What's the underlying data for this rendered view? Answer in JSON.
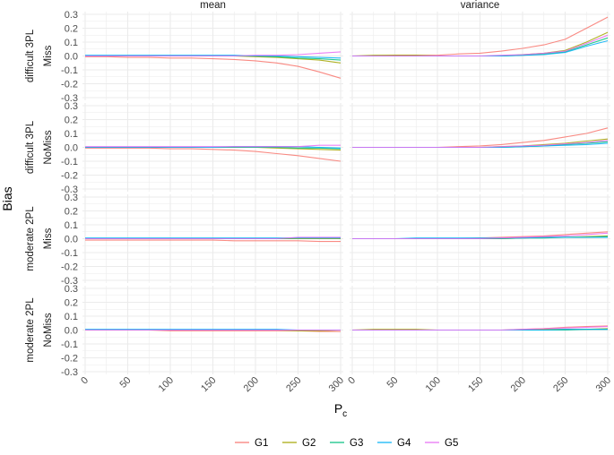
{
  "chart_data": {
    "type": "line",
    "ylabel": "Bias",
    "xlabel_main": "P",
    "xlabel_sub": "c",
    "xlim": [
      0,
      300
    ],
    "ylim": [
      -0.3,
      0.3
    ],
    "x_ticks": [
      "0",
      "50",
      "100",
      "150",
      "200",
      "250",
      "300"
    ],
    "y_ticks": [
      "-0.3",
      "-0.2",
      "-0.1",
      "0.0",
      "0.1",
      "0.2",
      "0.3"
    ],
    "grid": true,
    "legend_position": "bottom",
    "columns": [
      "mean",
      "variance"
    ],
    "rows": [
      {
        "line1": "difficult 3PL",
        "line2": "Miss"
      },
      {
        "line1": "difficult 3PL",
        "line2": "NoMiss"
      },
      {
        "line1": "moderate 2PL",
        "line2": "Miss"
      },
      {
        "line1": "moderate 2PL",
        "line2": "NoMiss"
      }
    ],
    "legend": [
      {
        "name": "G1",
        "color": "#F8766D"
      },
      {
        "name": "G2",
        "color": "#A3A500"
      },
      {
        "name": "G3",
        "color": "#00BF7D"
      },
      {
        "name": "G4",
        "color": "#00B0F6"
      },
      {
        "name": "G5",
        "color": "#E76BF3"
      }
    ],
    "x": [
      0,
      25,
      50,
      75,
      100,
      125,
      150,
      175,
      200,
      225,
      250,
      275,
      300
    ],
    "panels": [
      {
        "row": 0,
        "col": 0,
        "series": [
          [
            -0.005,
            -0.005,
            -0.01,
            -0.01,
            -0.015,
            -0.015,
            -0.02,
            -0.025,
            -0.035,
            -0.05,
            -0.075,
            -0.115,
            -0.16
          ],
          [
            0,
            0,
            0,
            0,
            0,
            0,
            0,
            0,
            -0.005,
            -0.01,
            -0.02,
            -0.03,
            -0.05
          ],
          [
            0,
            0,
            0,
            0,
            0,
            0,
            0,
            0,
            0,
            -0.005,
            -0.015,
            -0.02,
            -0.03
          ],
          [
            0.005,
            0.005,
            0.005,
            0.005,
            0.005,
            0.005,
            0.005,
            0.005,
            0,
            0,
            -0.005,
            -0.01,
            -0.015
          ],
          [
            0,
            0,
            0,
            0,
            0,
            0,
            0,
            0,
            0.005,
            0.005,
            0.01,
            0.02,
            0.03
          ]
        ]
      },
      {
        "row": 0,
        "col": 1,
        "series": [
          [
            0,
            0,
            0.005,
            0.005,
            0.005,
            0.015,
            0.02,
            0.035,
            0.055,
            0.08,
            0.12,
            0.2,
            0.28
          ],
          [
            0,
            0.005,
            0.005,
            0.005,
            0,
            0,
            0,
            0,
            0.01,
            0.02,
            0.04,
            0.1,
            0.17
          ],
          [
            0,
            0,
            0,
            0,
            0,
            0,
            0,
            0,
            0.005,
            0.015,
            0.03,
            0.08,
            0.13
          ],
          [
            0,
            0,
            0,
            0,
            0,
            0,
            0,
            0,
            0.005,
            0.01,
            0.025,
            0.07,
            0.11
          ],
          [
            0,
            0,
            0,
            0,
            0,
            0,
            0,
            0.005,
            0.01,
            0.02,
            0.035,
            0.09,
            0.15
          ]
        ]
      },
      {
        "row": 1,
        "col": 0,
        "series": [
          [
            -0.005,
            -0.005,
            -0.005,
            -0.005,
            -0.01,
            -0.01,
            -0.015,
            -0.02,
            -0.03,
            -0.045,
            -0.06,
            -0.08,
            -0.1
          ],
          [
            0,
            0,
            0,
            0,
            0,
            0,
            0,
            0,
            0,
            -0.005,
            -0.01,
            -0.015,
            -0.02
          ],
          [
            0,
            0,
            0,
            0,
            0,
            0,
            0,
            0,
            0,
            0,
            -0.005,
            -0.005,
            -0.01
          ],
          [
            0,
            0,
            0,
            0,
            0,
            0,
            0,
            0.005,
            0.005,
            0.005,
            0.005,
            0,
            -0.005
          ],
          [
            0.005,
            0.005,
            0.005,
            0.005,
            0.005,
            0.005,
            0.005,
            0.005,
            0.005,
            0.005,
            0.005,
            0.015,
            0.015
          ]
        ]
      },
      {
        "row": 1,
        "col": 1,
        "series": [
          [
            0,
            0,
            0,
            0,
            0,
            0.005,
            0.01,
            0.02,
            0.035,
            0.05,
            0.075,
            0.1,
            0.14
          ],
          [
            0,
            0,
            0,
            0,
            0,
            0,
            0,
            0.005,
            0.01,
            0.02,
            0.03,
            0.045,
            0.06
          ],
          [
            0,
            0,
            0,
            0,
            0,
            0,
            0,
            0,
            0.005,
            0.01,
            0.02,
            0.03,
            0.04
          ],
          [
            0,
            0,
            0,
            0,
            0,
            0,
            0,
            0,
            0.005,
            0.01,
            0.015,
            0.02,
            0.03
          ],
          [
            0,
            0,
            0,
            0,
            0,
            0,
            0,
            0.005,
            0.01,
            0.015,
            0.025,
            0.035,
            0.05
          ]
        ]
      },
      {
        "row": 2,
        "col": 0,
        "series": [
          [
            -0.01,
            -0.01,
            -0.01,
            -0.01,
            -0.01,
            -0.01,
            -0.01,
            -0.015,
            -0.015,
            -0.015,
            -0.015,
            -0.02,
            -0.02
          ],
          [
            0,
            0,
            0,
            0,
            0,
            0,
            0,
            0,
            0,
            0,
            0,
            0,
            0
          ],
          [
            0,
            0,
            0,
            0,
            0,
            0,
            0,
            0,
            0,
            0,
            0.005,
            0.005,
            0.005
          ],
          [
            0.005,
            0.005,
            0.005,
            0.005,
            0.005,
            0.005,
            0.005,
            0.005,
            0.005,
            0.005,
            0.005,
            0.005,
            0.005
          ],
          [
            0,
            0,
            0,
            0,
            0,
            0,
            0,
            0,
            0,
            0,
            0.01,
            0.01,
            0.01
          ]
        ]
      },
      {
        "row": 2,
        "col": 1,
        "series": [
          [
            0,
            0,
            0,
            0,
            0,
            0,
            0.005,
            0.01,
            0.015,
            0.02,
            0.03,
            0.04,
            0.05
          ],
          [
            0,
            0,
            0,
            0,
            0,
            0,
            0,
            0,
            0.005,
            0.01,
            0.01,
            0.015,
            0.02
          ],
          [
            0,
            0,
            0,
            0,
            0,
            0,
            0,
            0,
            0.005,
            0.005,
            0.01,
            0.01,
            0.015
          ],
          [
            0,
            0,
            0,
            0.005,
            0.005,
            0.005,
            0.005,
            0.005,
            0.005,
            0.01,
            0.01,
            0.01,
            0.01
          ],
          [
            0,
            0,
            0,
            0,
            0,
            0,
            0,
            0.005,
            0.01,
            0.015,
            0.02,
            0.03,
            0.04
          ]
        ]
      },
      {
        "row": 3,
        "col": 0,
        "series": [
          [
            0,
            0,
            0,
            0,
            -0.005,
            -0.005,
            -0.005,
            -0.005,
            -0.005,
            -0.005,
            -0.005,
            -0.01,
            -0.01
          ],
          [
            0,
            0,
            0,
            0,
            0,
            0,
            0,
            0,
            0,
            0,
            -0.005,
            -0.005,
            0
          ],
          [
            0,
            0,
            0,
            0,
            0,
            0,
            0,
            0,
            0,
            0,
            0,
            0,
            0
          ],
          [
            0.005,
            0.005,
            0.005,
            0.005,
            0.005,
            0.005,
            0.005,
            0.005,
            0.005,
            0.005,
            0,
            0,
            0
          ],
          [
            0,
            0,
            0,
            0,
            0,
            0,
            0,
            0,
            0,
            0,
            0,
            0,
            0
          ]
        ]
      },
      {
        "row": 3,
        "col": 1,
        "series": [
          [
            0,
            0,
            0,
            0,
            0,
            0,
            0,
            0,
            0.005,
            0.01,
            0.02,
            0.025,
            0.03
          ],
          [
            0,
            0.005,
            0.005,
            0.005,
            0,
            0,
            0,
            0,
            0,
            0.005,
            0.005,
            0.005,
            0.01
          ],
          [
            0,
            0,
            0,
            0,
            0,
            0,
            0,
            0,
            0,
            0,
            0,
            0.005,
            0.005
          ],
          [
            0,
            0,
            0,
            0,
            0,
            0,
            0,
            0,
            0,
            0,
            0.005,
            0.005,
            0.005
          ],
          [
            0,
            0,
            0,
            0,
            0,
            0,
            0,
            0,
            0.005,
            0.01,
            0.015,
            0.02,
            0.025
          ]
        ]
      }
    ]
  }
}
